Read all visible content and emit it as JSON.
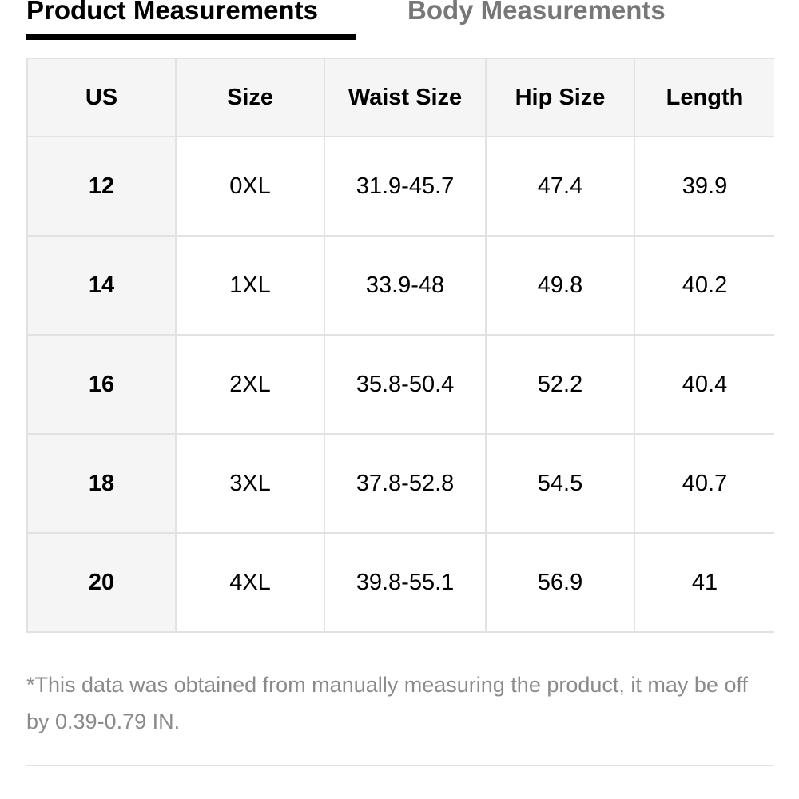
{
  "tabs": [
    "Product Measurements",
    "Body Measurements"
  ],
  "table": {
    "header": [
      "US",
      "Size",
      "Waist Size",
      "Hip Size",
      "Length"
    ],
    "rows": [
      [
        "12",
        "0XL",
        "31.9-45.7",
        "47.4",
        "39.9"
      ],
      [
        "14",
        "1XL",
        "33.9-48",
        "49.8",
        "40.2"
      ],
      [
        "16",
        "2XL",
        "35.8-50.4",
        "52.2",
        "40.4"
      ],
      [
        "18",
        "3XL",
        "37.8-52.8",
        "54.5",
        "40.7"
      ],
      [
        "20",
        "4XL",
        "39.8-55.1",
        "56.9",
        "41"
      ]
    ]
  },
  "note": "*This data was obtained from manually measuring the product, it may be off by 0.39-0.79 IN."
}
